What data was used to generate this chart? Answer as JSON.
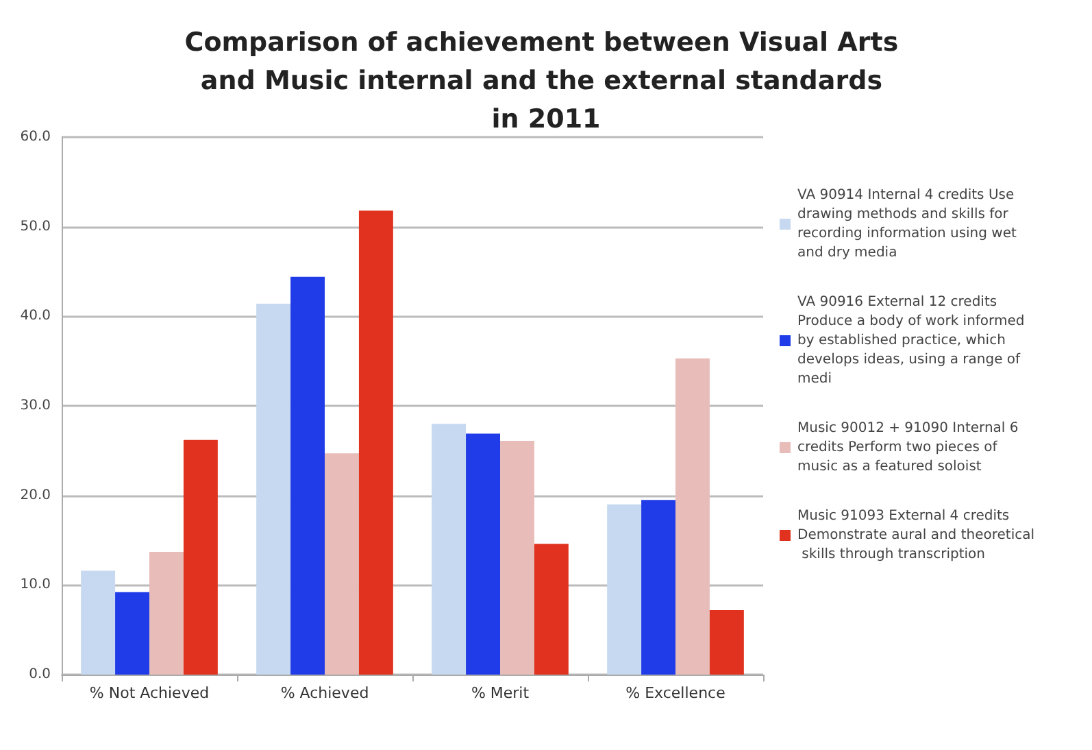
{
  "chart_data": {
    "type": "bar",
    "title": "Comparison of achievement between Visual Arts and Music internal and the external standards in 2011",
    "categories": [
      "% Not Achieved",
      "% Achieved",
      "% Merit",
      "% Excellence"
    ],
    "series": [
      {
        "name": "VA 90914 Internal 4 credits Use drawing methods and skills for recording information using wet and dry media",
        "color": "#c6d9f0",
        "values": [
          11.6,
          41.4,
          28.0,
          19.0
        ]
      },
      {
        "name": "VA 90916 External 12 credits Produce a body of work informed by established practice, which develops ideas, using a range of medi",
        "color": "#1f3ce8",
        "values": [
          9.2,
          44.4,
          26.9,
          19.5
        ]
      },
      {
        "name": "Music 90012 + 91090 Internal 6 credits Perform two pieces of music as a featured soloist",
        "color": "#e8bcb9",
        "values": [
          13.7,
          24.7,
          26.1,
          35.3
        ]
      },
      {
        "name": "Music 91093 External 4 credits Demonstrate aural and theoretical skills through transcription",
        "color": "#e0321e",
        "values": [
          26.2,
          51.8,
          14.6,
          7.2
        ]
      }
    ],
    "ylim": [
      0,
      60
    ],
    "yticks": [
      {
        "value": 0,
        "label": "0.0"
      },
      {
        "value": 10,
        "label": "10.0"
      },
      {
        "value": 20,
        "label": "20.0"
      },
      {
        "value": 30,
        "label": "30.0"
      },
      {
        "value": 40,
        "label": "40.0"
      },
      {
        "value": 50,
        "label": "50.0"
      },
      {
        "value": 60,
        "label": "60.0"
      }
    ],
    "grid": "y",
    "legend": "right"
  }
}
